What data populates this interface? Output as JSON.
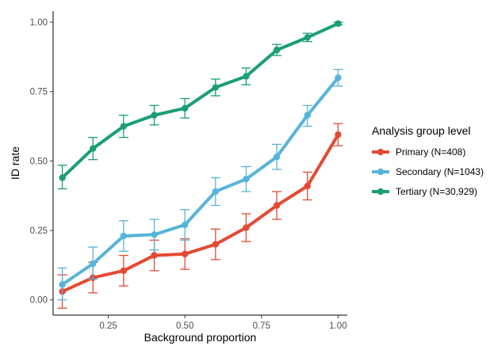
{
  "chart_data": {
    "type": "line",
    "title": "",
    "xlabel": "Background proportion",
    "ylabel": "ID rate",
    "xlim": [
      0.07,
      1.03
    ],
    "ylim": [
      -0.055,
      1.04
    ],
    "x_ticks": [
      0.25,
      0.5,
      0.75,
      1.0
    ],
    "x_tick_labels": [
      "0.25",
      "0.50",
      "0.75",
      "1.00"
    ],
    "y_ticks": [
      0,
      0.25,
      0.5,
      0.75,
      1.0
    ],
    "y_tick_labels": [
      "0.00",
      "0.25",
      "0.50",
      "0.75",
      "1.00"
    ],
    "grid": false,
    "legend": {
      "title": "Analysis group level",
      "placement": "right"
    },
    "x": [
      0.1,
      0.2,
      0.3,
      0.4,
      0.5,
      0.6,
      0.7,
      0.8,
      0.9,
      1.0
    ],
    "series": [
      {
        "name": "Primary (N=408)",
        "color": "#e34a33",
        "values": [
          0.03,
          0.08,
          0.105,
          0.16,
          0.165,
          0.2,
          0.26,
          0.34,
          0.41,
          0.595
        ],
        "lower": [
          -0.03,
          0.025,
          0.05,
          0.105,
          0.11,
          0.145,
          0.21,
          0.29,
          0.36,
          0.555
        ],
        "upper": [
          0.09,
          0.135,
          0.16,
          0.215,
          0.22,
          0.255,
          0.31,
          0.39,
          0.46,
          0.635
        ]
      },
      {
        "name": "Secondary (N=1043)",
        "color": "#56b4d9",
        "values": [
          0.055,
          0.13,
          0.23,
          0.235,
          0.27,
          0.39,
          0.435,
          0.515,
          0.665,
          0.8
        ],
        "lower": [
          0.0,
          0.075,
          0.175,
          0.18,
          0.215,
          0.34,
          0.39,
          0.47,
          0.625,
          0.77
        ],
        "upper": [
          0.115,
          0.19,
          0.285,
          0.29,
          0.325,
          0.44,
          0.48,
          0.56,
          0.7,
          0.83
        ]
      },
      {
        "name": "Tertiary (N=30,929)",
        "color": "#1b9e77",
        "values": [
          0.44,
          0.545,
          0.625,
          0.665,
          0.69,
          0.765,
          0.805,
          0.9,
          0.945,
          0.995
        ],
        "lower": [
          0.4,
          0.505,
          0.585,
          0.63,
          0.655,
          0.735,
          0.775,
          0.88,
          0.93,
          0.99
        ],
        "upper": [
          0.485,
          0.585,
          0.665,
          0.7,
          0.725,
          0.795,
          0.835,
          0.92,
          0.96,
          1.0
        ]
      }
    ]
  }
}
